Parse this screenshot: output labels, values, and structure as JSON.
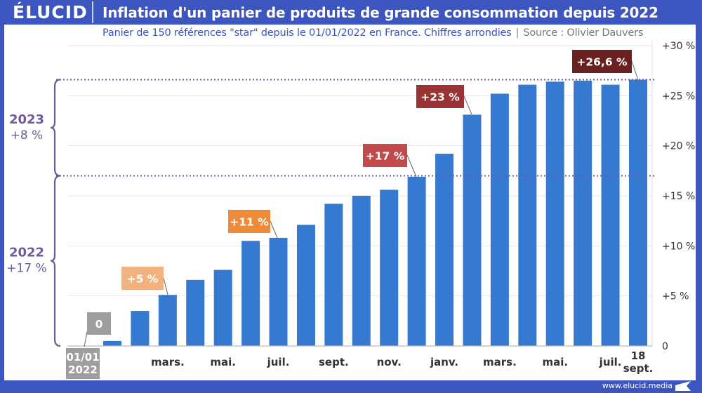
{
  "header": {
    "logo": "ÉLUCID",
    "title": "Inflation d'un panier de produits de grande consommation depuis 2022",
    "subtitle": "Panier de 150 références \"star\" depuis le 01/01/2022 en France. Chiffres arrondies",
    "separator": "|",
    "source": "Source : Olivier Dauvers"
  },
  "footer": {
    "url": "www.elucid.media",
    "icon": "elucid-flag-icon"
  },
  "colors": {
    "frame": "#3c55bf",
    "bar": "#3579d0",
    "grid": "#e6e6e6",
    "brace": "#6e5a9e",
    "label_start": "#9e9e9e",
    "label_5": "#f2b27f",
    "label_11": "#ee8b3a",
    "label_17": "#c24a4a",
    "label_23": "#9a3434",
    "label_266": "#6b2020"
  },
  "chart_data": {
    "type": "bar",
    "title": "Inflation d'un panier de produits de grande consommation depuis 2022",
    "subtitle": "Panier de 150 références \"star\" depuis le 01/01/2022 en France. Chiffres arrondies | Source : Olivier Dauvers",
    "xlabel": "",
    "ylabel": "",
    "ylim": [
      0,
      30
    ],
    "y_axis_position": "right",
    "y_ticks": [
      0,
      5,
      10,
      15,
      20,
      25,
      30
    ],
    "y_tick_labels": [
      "0",
      "+5 %",
      "+10 %",
      "+15 %",
      "+20 %",
      "+25 %",
      "+30 %"
    ],
    "grid": true,
    "values": [
      0.5,
      3.5,
      5.1,
      6.6,
      7.6,
      10.5,
      10.8,
      12.1,
      14.2,
      15.0,
      15.6,
      16.9,
      19.2,
      23.1,
      25.2,
      26.1,
      26.4,
      26.5,
      26.1,
      26.6
    ],
    "x_tick_labels": [
      {
        "index": 0,
        "lines": [
          "01/01",
          "2022"
        ],
        "boxed": true
      },
      {
        "index": 2,
        "lines": [
          "mars."
        ]
      },
      {
        "index": 4,
        "lines": [
          "mai."
        ]
      },
      {
        "index": 6,
        "lines": [
          "juil."
        ]
      },
      {
        "index": 8,
        "lines": [
          "sept."
        ]
      },
      {
        "index": 10,
        "lines": [
          "nov."
        ]
      },
      {
        "index": 12,
        "lines": [
          "janv."
        ]
      },
      {
        "index": 14,
        "lines": [
          "mars."
        ]
      },
      {
        "index": 16,
        "lines": [
          "mai."
        ]
      },
      {
        "index": 18,
        "lines": [
          "juil."
        ]
      },
      {
        "index": 19,
        "lines": [
          "18",
          "sept."
        ]
      }
    ],
    "annotations": [
      {
        "text": "0",
        "value": 0,
        "bar_index": -1,
        "color_key": "label_start"
      },
      {
        "text": "+5 %",
        "value": 5,
        "bar_index": 2,
        "color_key": "label_5"
      },
      {
        "text": "+11 %",
        "value": 11,
        "bar_index": 6,
        "color_key": "label_11"
      },
      {
        "text": "+17 %",
        "value": 17,
        "bar_index": 11,
        "color_key": "label_17"
      },
      {
        "text": "+23 %",
        "value": 23,
        "bar_index": 13,
        "color_key": "label_23"
      },
      {
        "text": "+26,6 %",
        "value": 26.6,
        "bar_index": 19,
        "color_key": "label_266"
      }
    ],
    "reference_lines": [
      17,
      26.6
    ],
    "periods": [
      {
        "year": "2023",
        "change": "+8 %",
        "from": 17,
        "to": 26.6
      },
      {
        "year": "2022",
        "change": "+17 %",
        "from": 0,
        "to": 17
      }
    ]
  }
}
